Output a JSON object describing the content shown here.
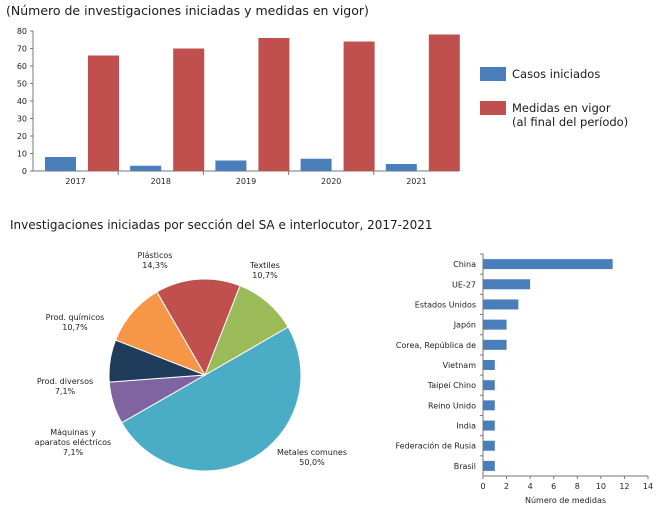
{
  "top_title": "(Número de investigaciones iniciadas y medidas en vigor)",
  "section_title": "Investigaciones iniciadas por sección del SA e interlocutor, 2017-2021",
  "chart_data": [
    {
      "type": "bar",
      "title": "(Número de investigaciones iniciadas y medidas en vigor)",
      "categories": [
        "2017",
        "2018",
        "2019",
        "2020",
        "2021"
      ],
      "series": [
        {
          "name": "Casos iniciados",
          "color": "#4a7ebb",
          "values": [
            8,
            3,
            6,
            7,
            4
          ]
        },
        {
          "name": "Medidas en vigor (al final del período)",
          "legend_lines": [
            "Medidas en vigor",
            "(al final del período)"
          ],
          "color": "#c0504d",
          "values": [
            66,
            70,
            76,
            74,
            78
          ]
        }
      ],
      "ylim": [
        0,
        80
      ],
      "yticks": [
        "0",
        "10",
        "20",
        "30",
        "40",
        "50",
        "60",
        "70",
        "80"
      ],
      "legend_position": "right"
    },
    {
      "type": "pie",
      "slices": [
        {
          "label": "Metales comunes",
          "label_lines": [
            "Metales comunes"
          ],
          "pct_text": "50,0%",
          "value": 50.0,
          "color": "#4bacc6"
        },
        {
          "label": "Máquinas y aparatos eléctricos",
          "label_lines": [
            "Máquinas y",
            "aparatos eléctricos"
          ],
          "pct_text": "7,1%",
          "value": 7.1,
          "color": "#8064a2"
        },
        {
          "label": "Prod. diversos",
          "label_lines": [
            "Prod. diversos"
          ],
          "pct_text": "7,1%",
          "value": 7.1,
          "color": "#1f3b5a"
        },
        {
          "label": "Prod. químicos",
          "label_lines": [
            "Prod. químicos"
          ],
          "pct_text": "10,7%",
          "value": 10.7,
          "color": "#f79646"
        },
        {
          "label": "Plásticos",
          "label_lines": [
            "Plásticos"
          ],
          "pct_text": "14,3%",
          "value": 14.3,
          "color": "#c0504d"
        },
        {
          "label": "Textiles",
          "label_lines": [
            "Textiles"
          ],
          "pct_text": "10,7%",
          "value": 10.7,
          "color": "#9bbb59"
        }
      ]
    },
    {
      "type": "bar",
      "orientation": "horizontal",
      "color": "#4a7ebb",
      "categories": [
        "China",
        "UE-27",
        "Estados Unidos",
        "Japón",
        "Corea, República de",
        "Vietnam",
        "Taipei Chino",
        "Reino Unido",
        "India",
        "Federación de Rusia",
        "Brasil"
      ],
      "values": [
        11,
        4,
        3,
        2,
        2,
        1,
        1,
        1,
        1,
        1,
        1
      ],
      "xlim": [
        0,
        14
      ],
      "xticks": [
        "0",
        "2",
        "4",
        "6",
        "8",
        "10",
        "12",
        "14"
      ],
      "xlabel": "Número de medidas"
    }
  ]
}
